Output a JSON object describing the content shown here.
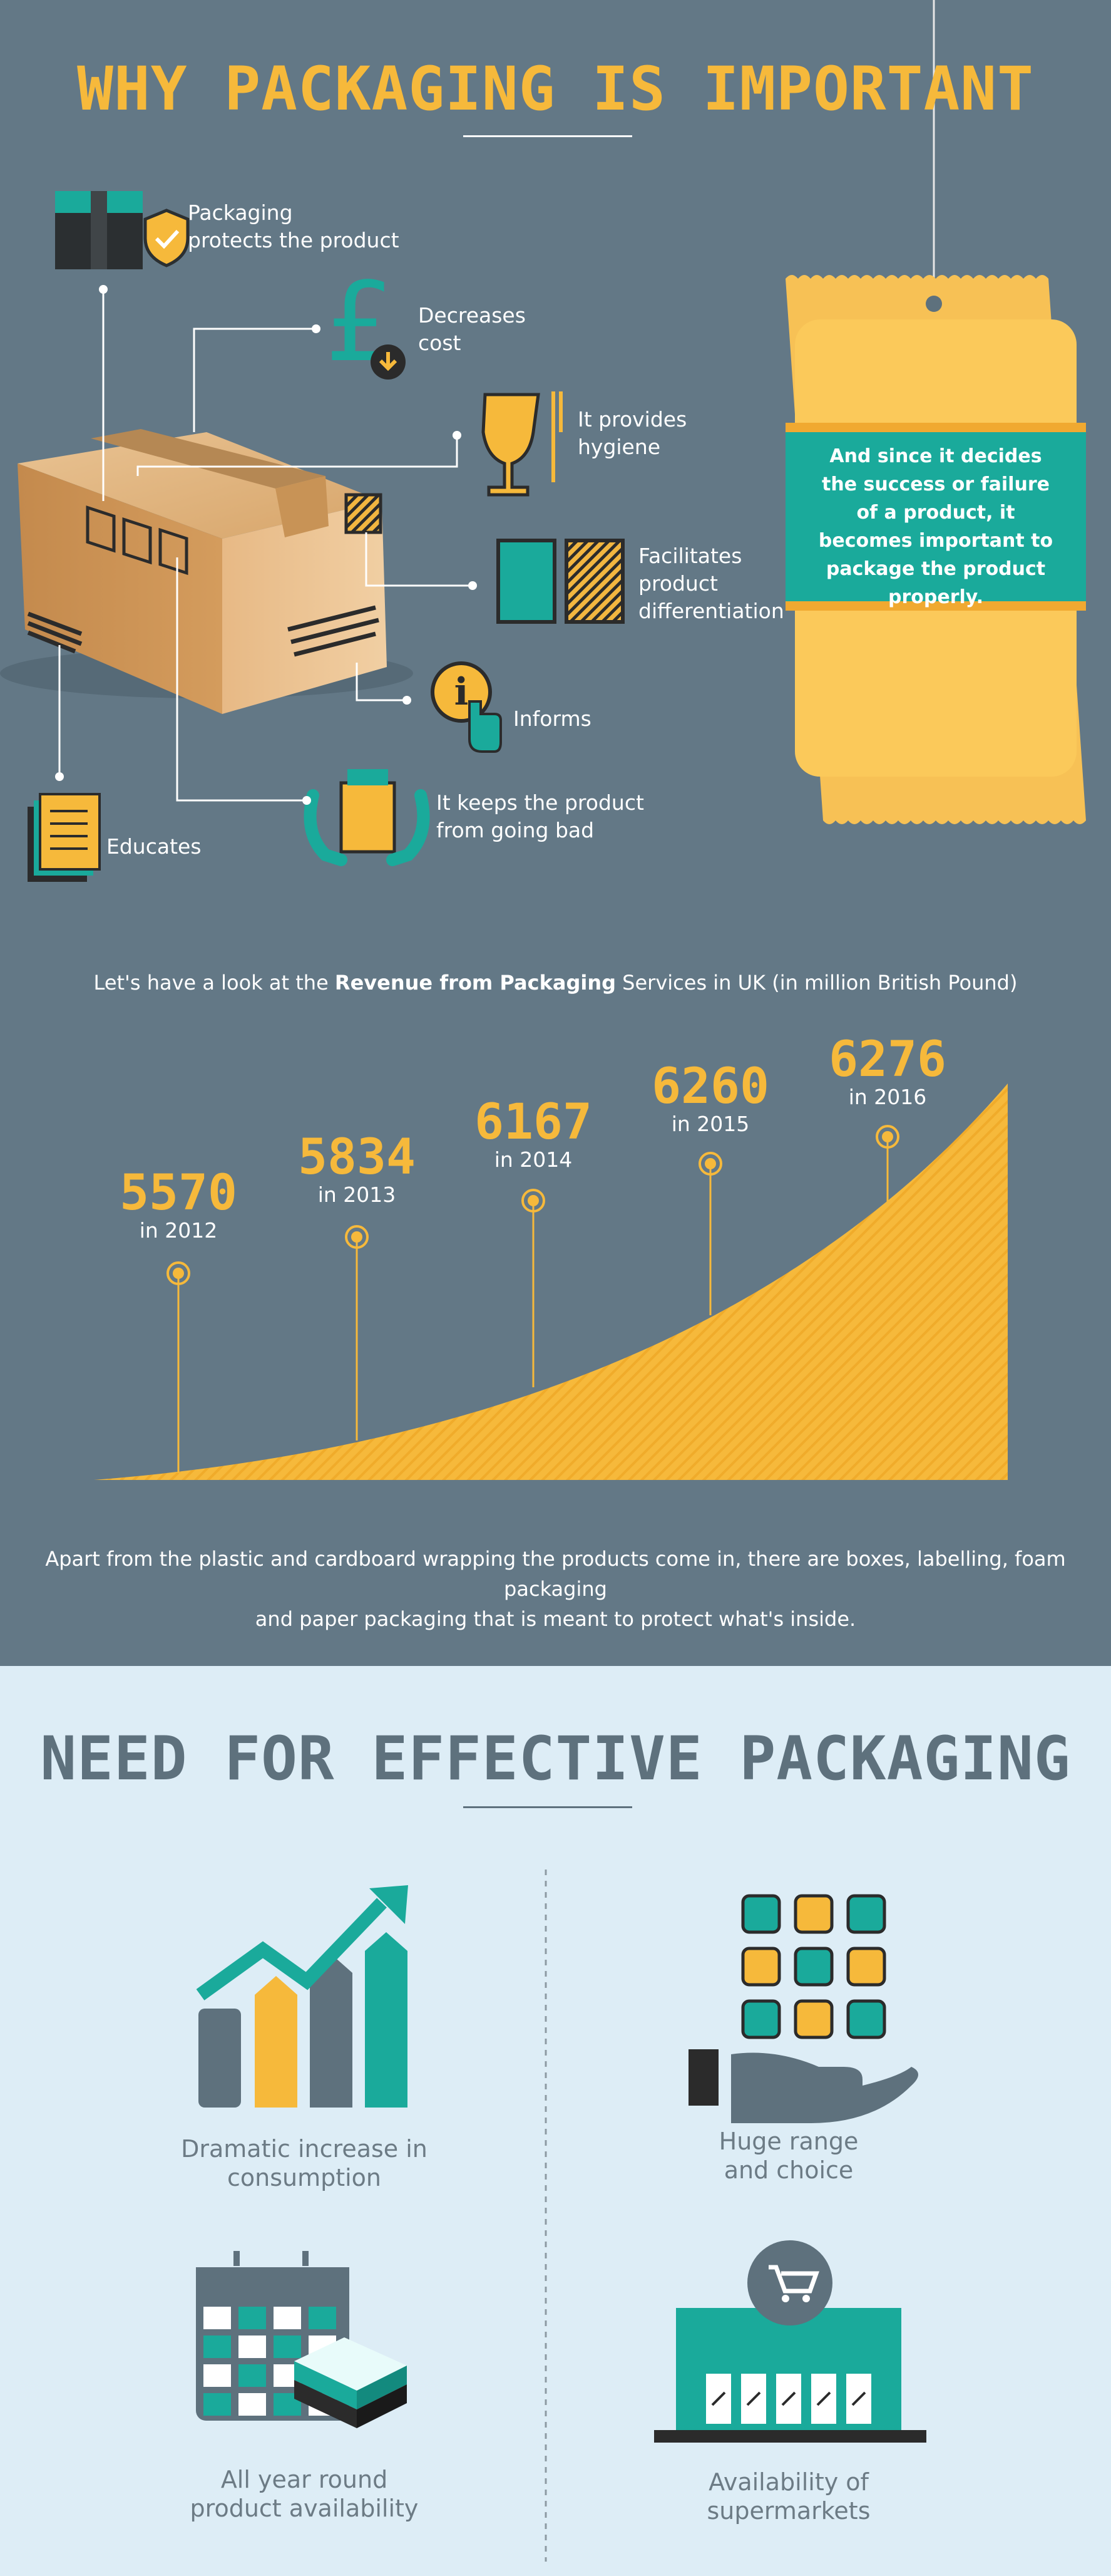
{
  "section1": {
    "title": "WHY PACKAGING IS IMPORTANT",
    "benefits": {
      "protects": "Packaging\nprotects the product",
      "cost": "Decreases\ncost",
      "hygiene": "It provides\nhygiene",
      "differentiation": "Facilitates\nproduct\ndifferentiation",
      "informs": "Informs",
      "fresh": "It  keeps the product\nfrom going bad",
      "educates": "Educates"
    },
    "bag_text": "And since it decides the success or failure of a product, it becomes important to package the product properly."
  },
  "revenue": {
    "intro_pre": "Let's have a look at the ",
    "intro_bold": "Revenue from Packaging",
    "intro_post": " Services in UK (in million British Pound)",
    "points": [
      {
        "value": "5570",
        "year": "in 2012"
      },
      {
        "value": "5834",
        "year": "in 2013"
      },
      {
        "value": "6167",
        "year": "in 2014"
      },
      {
        "value": "6260",
        "year": "in 2015"
      },
      {
        "value": "6276",
        "year": "in 2016"
      }
    ],
    "footnote": "Apart from the plastic and cardboard wrapping the products come in, there are boxes, labelling, foam packaging\nand paper packaging that is meant to protect what's inside."
  },
  "section2": {
    "title": "NEED FOR EFFECTIVE PACKAGING",
    "items": {
      "consumption": "Dramatic increase in\nconsumption",
      "range": "Huge range\nand choice",
      "availability": "All year round\nproduct availability",
      "supermarkets": "Availability of\nsupermarkets"
    }
  },
  "colors": {
    "bg_top": "#637886",
    "bg_bottom": "#ddedf6",
    "accent_yellow": "#f6b93b",
    "teal": "#1aaa9b",
    "slate": "#5e717d",
    "dark": "#2b2b2b"
  }
}
